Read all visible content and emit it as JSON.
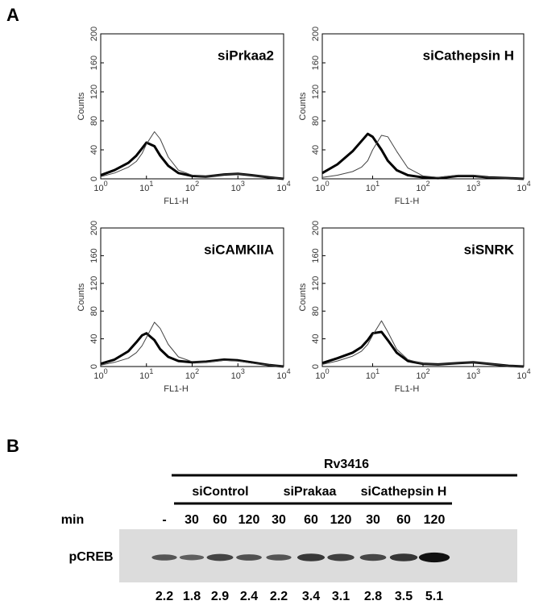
{
  "panel_a": {
    "label": "A"
  },
  "chart_data": [
    {
      "type": "line",
      "title": "siPrkaa2",
      "x_label": "FL1-H",
      "y_label": "Counts",
      "log_x": true,
      "x": [
        1,
        2,
        4,
        6,
        8,
        10,
        15,
        20,
        30,
        50,
        100,
        200,
        500,
        1000,
        2000,
        5000,
        10000
      ],
      "xlim": [
        1,
        10000
      ],
      "ylim": [
        0,
        200
      ],
      "yticks": [
        0,
        40,
        80,
        120,
        160,
        200
      ],
      "xticks": [
        {
          "value": 1,
          "label": "10",
          "exponent": "0"
        },
        {
          "value": 10,
          "label": "10",
          "exponent": "1"
        },
        {
          "value": 100,
          "label": "10",
          "exponent": "2"
        },
        {
          "value": 1000,
          "label": "10",
          "exponent": "3"
        },
        {
          "value": 10000,
          "label": "10",
          "exponent": "4"
        }
      ],
      "series": [
        {
          "color": "#000000",
          "line_width": 3,
          "values": [
            5,
            12,
            22,
            32,
            42,
            50,
            45,
            32,
            18,
            8,
            4,
            3,
            6,
            7,
            5,
            2,
            0
          ]
        },
        {
          "color": "#444444",
          "line_width": 1,
          "values": [
            3,
            8,
            16,
            24,
            35,
            48,
            65,
            55,
            30,
            12,
            5,
            3,
            6,
            7,
            5,
            2,
            0
          ]
        }
      ]
    },
    {
      "type": "line",
      "title": "siCathepsin H",
      "x_label": "FL1-H",
      "y_label": "Counts",
      "log_x": true,
      "x": [
        1,
        2,
        4,
        6,
        8,
        10,
        15,
        20,
        30,
        50,
        100,
        200,
        500,
        1000,
        2000,
        5000,
        10000
      ],
      "xlim": [
        1,
        10000
      ],
      "ylim": [
        0,
        200
      ],
      "yticks": [
        0,
        40,
        80,
        120,
        160,
        200
      ],
      "xticks": [
        {
          "value": 1,
          "label": "10",
          "exponent": "0"
        },
        {
          "value": 10,
          "label": "10",
          "exponent": "1"
        },
        {
          "value": 100,
          "label": "10",
          "exponent": "2"
        },
        {
          "value": 1000,
          "label": "10",
          "exponent": "3"
        },
        {
          "value": 10000,
          "label": "10",
          "exponent": "4"
        }
      ],
      "series": [
        {
          "color": "#000000",
          "line_width": 3,
          "values": [
            8,
            20,
            38,
            52,
            62,
            58,
            40,
            25,
            12,
            5,
            2,
            1,
            4,
            4,
            2,
            1,
            0
          ]
        },
        {
          "color": "#444444",
          "line_width": 1,
          "values": [
            2,
            5,
            10,
            16,
            25,
            40,
            60,
            58,
            38,
            15,
            4,
            2,
            5,
            5,
            2,
            1,
            0
          ]
        }
      ]
    },
    {
      "type": "line",
      "title": "siCAMKIIA",
      "x_label": "FL1-H",
      "y_label": "Counts",
      "log_x": true,
      "x": [
        1,
        2,
        4,
        6,
        8,
        10,
        15,
        20,
        30,
        50,
        100,
        200,
        500,
        1000,
        2000,
        5000,
        10000
      ],
      "xlim": [
        1,
        10000
      ],
      "ylim": [
        0,
        200
      ],
      "yticks": [
        0,
        40,
        80,
        120,
        160,
        200
      ],
      "xticks": [
        {
          "value": 1,
          "label": "10",
          "exponent": "0"
        },
        {
          "value": 10,
          "label": "10",
          "exponent": "1"
        },
        {
          "value": 100,
          "label": "10",
          "exponent": "2"
        },
        {
          "value": 1000,
          "label": "10",
          "exponent": "3"
        },
        {
          "value": 10000,
          "label": "10",
          "exponent": "4"
        }
      ],
      "series": [
        {
          "color": "#000000",
          "line_width": 3,
          "values": [
            4,
            10,
            22,
            35,
            45,
            48,
            38,
            25,
            14,
            8,
            6,
            7,
            10,
            9,
            6,
            2,
            0
          ]
        },
        {
          "color": "#444444",
          "line_width": 1,
          "values": [
            2,
            6,
            12,
            20,
            30,
            42,
            64,
            55,
            32,
            14,
            7,
            6,
            9,
            8,
            5,
            2,
            0
          ]
        }
      ]
    },
    {
      "type": "line",
      "title": "siSNRK",
      "x_label": "FL1-H",
      "y_label": "Counts",
      "log_x": true,
      "x": [
        1,
        2,
        4,
        6,
        8,
        10,
        15,
        20,
        30,
        50,
        100,
        200,
        500,
        1000,
        2000,
        5000,
        10000
      ],
      "xlim": [
        1,
        10000
      ],
      "ylim": [
        0,
        200
      ],
      "yticks": [
        0,
        40,
        80,
        120,
        160,
        200
      ],
      "xticks": [
        {
          "value": 1,
          "label": "10",
          "exponent": "0"
        },
        {
          "value": 10,
          "label": "10",
          "exponent": "1"
        },
        {
          "value": 100,
          "label": "10",
          "exponent": "2"
        },
        {
          "value": 1000,
          "label": "10",
          "exponent": "3"
        },
        {
          "value": 10000,
          "label": "10",
          "exponent": "4"
        }
      ],
      "series": [
        {
          "color": "#000000",
          "line_width": 3,
          "values": [
            5,
            12,
            20,
            28,
            38,
            48,
            50,
            38,
            20,
            8,
            4,
            3,
            5,
            6,
            4,
            1,
            0
          ]
        },
        {
          "color": "#444444",
          "line_width": 1,
          "values": [
            3,
            8,
            15,
            22,
            32,
            45,
            66,
            50,
            25,
            10,
            4,
            3,
            5,
            6,
            4,
            1,
            0
          ]
        }
      ]
    }
  ],
  "panel_b": {
    "label": "B",
    "treatment": "Rv3416",
    "groups": [
      "siControl",
      "siPrakaa",
      "siCathepsin H"
    ],
    "time_label": "min",
    "times": [
      "-",
      "30",
      "60",
      "120",
      "30",
      "60",
      "120",
      "30",
      "60",
      "120"
    ],
    "row_label": "pCREB",
    "quantification": [
      2.2,
      1.8,
      2.9,
      2.4,
      2.2,
      3.4,
      3.1,
      2.8,
      3.5,
      5.1
    ]
  }
}
